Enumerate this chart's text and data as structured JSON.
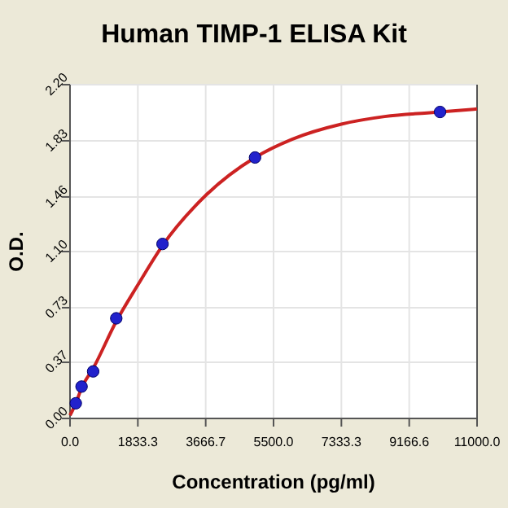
{
  "chart_data": {
    "type": "scatter",
    "title": "Human TIMP-1 ELISA Kit",
    "xlabel": "Concentration (pg/ml)",
    "ylabel": "O.D.",
    "xlim": [
      0,
      11000
    ],
    "xticks": [
      {
        "value": 0,
        "label": "0.0"
      },
      {
        "value": 1833.3,
        "label": "1833.3"
      },
      {
        "value": 3666.7,
        "label": "3666.7"
      },
      {
        "value": 5500,
        "label": "5500.0"
      },
      {
        "value": 7333.3,
        "label": "7333.3"
      },
      {
        "value": 9166.6,
        "label": "9166.6"
      },
      {
        "value": 11000,
        "label": "11000.0"
      }
    ],
    "ylim": [
      0,
      2.2
    ],
    "yticks": [
      {
        "value": 0,
        "label": "0.00"
      },
      0.37,
      0.73,
      {
        "value": 1.1,
        "label": "1.10"
      },
      1.46,
      1.83,
      {
        "value": 2.2,
        "label": "2.20"
      }
    ],
    "grid": true,
    "marker": "circle",
    "series": [
      {
        "type": "line",
        "color": "#cc2222",
        "marker": "none",
        "x": [
          0,
          156,
          312,
          625,
          1250,
          1833,
          2500,
          3667,
          5000,
          6000,
          7333,
          8500,
          10000,
          11000
        ],
        "values": [
          0.02,
          0.1,
          0.2,
          0.33,
          0.64,
          0.88,
          1.14,
          1.47,
          1.72,
          1.84,
          1.94,
          1.99,
          2.02,
          2.04
        ]
      },
      {
        "color": "#2222cc",
        "x": [
          156,
          312,
          625,
          1250,
          2500,
          5000,
          10000
        ],
        "values": [
          0.1,
          0.21,
          0.31,
          0.66,
          1.15,
          1.72,
          2.02
        ]
      }
    ]
  }
}
